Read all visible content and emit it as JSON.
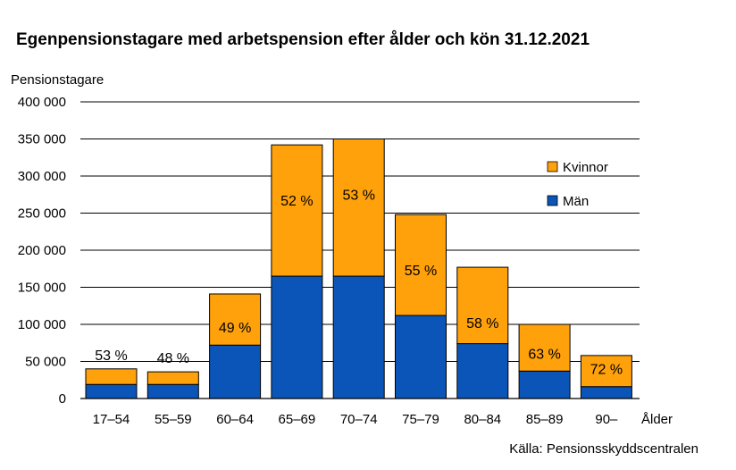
{
  "chart_data": {
    "type": "bar",
    "stacked": true,
    "title": "Egenpensionstagare med arbetspension efter ålder och kön 31.12.2021",
    "ylabel": "Pensionstagare",
    "xlabel": "Ålder",
    "source": "Källa: Pensionsskyddscentralen",
    "ylim": [
      0,
      400000
    ],
    "yticks": [
      0,
      50000,
      100000,
      150000,
      200000,
      250000,
      300000,
      350000,
      400000
    ],
    "ytick_labels": [
      "0",
      "50 000",
      "100 000",
      "150 000",
      "200 000",
      "250 000",
      "300 000",
      "350 000",
      "400 000"
    ],
    "categories": [
      "17–54",
      "55–59",
      "60–64",
      "65–69",
      "70–74",
      "75–79",
      "80–84",
      "85–89",
      "90–"
    ],
    "series": [
      {
        "name": "Män",
        "color": "#0b55b8",
        "values": [
          19000,
          19000,
          72000,
          165000,
          165000,
          112000,
          74000,
          37000,
          16000
        ]
      },
      {
        "name": "Kvinnor",
        "color": "#ffa10a",
        "values": [
          21000,
          17000,
          69000,
          177000,
          185000,
          136000,
          103000,
          63000,
          42000
        ]
      }
    ],
    "women_share_labels": [
      "53 %",
      "48 %",
      "49 %",
      "52 %",
      "53 %",
      "55 %",
      "58 %",
      "63 %",
      "72 %"
    ],
    "legend": [
      "Kvinnor",
      "Män"
    ],
    "legend_position": "right",
    "grid": true
  }
}
